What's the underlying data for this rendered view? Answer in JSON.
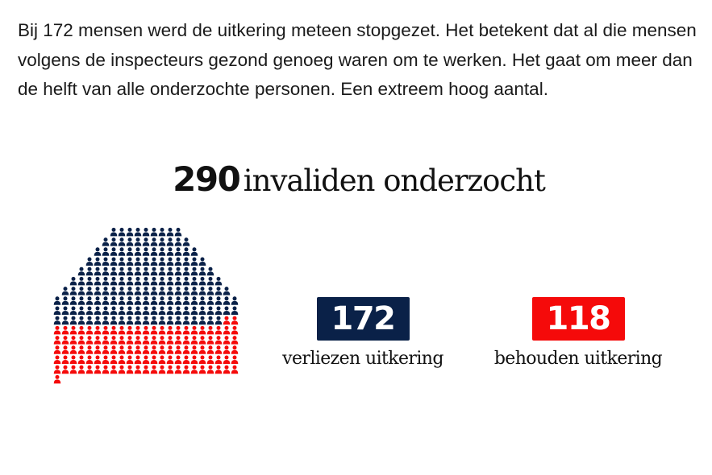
{
  "intro_text": "Bij 172 mensen werd de uitkering meteen stopgezet. Het betekent dat al die mensen volgens de inspecteurs gezond genoeg waren om te werken. Het gaat om meer dan de helft van alle onderzochte personen. Een extreem hoog aantal.",
  "chart_data": {
    "type": "pictogram",
    "title_number": "290",
    "title_text": "invaliden onderzocht",
    "total": 290,
    "series": [
      {
        "name": "verliezen uitkering",
        "value": 172,
        "value_label": "172",
        "color": "#0a2148"
      },
      {
        "name": "behouden uitkering",
        "value": 118,
        "value_label": "118",
        "color": "#f50a0a"
      }
    ]
  }
}
